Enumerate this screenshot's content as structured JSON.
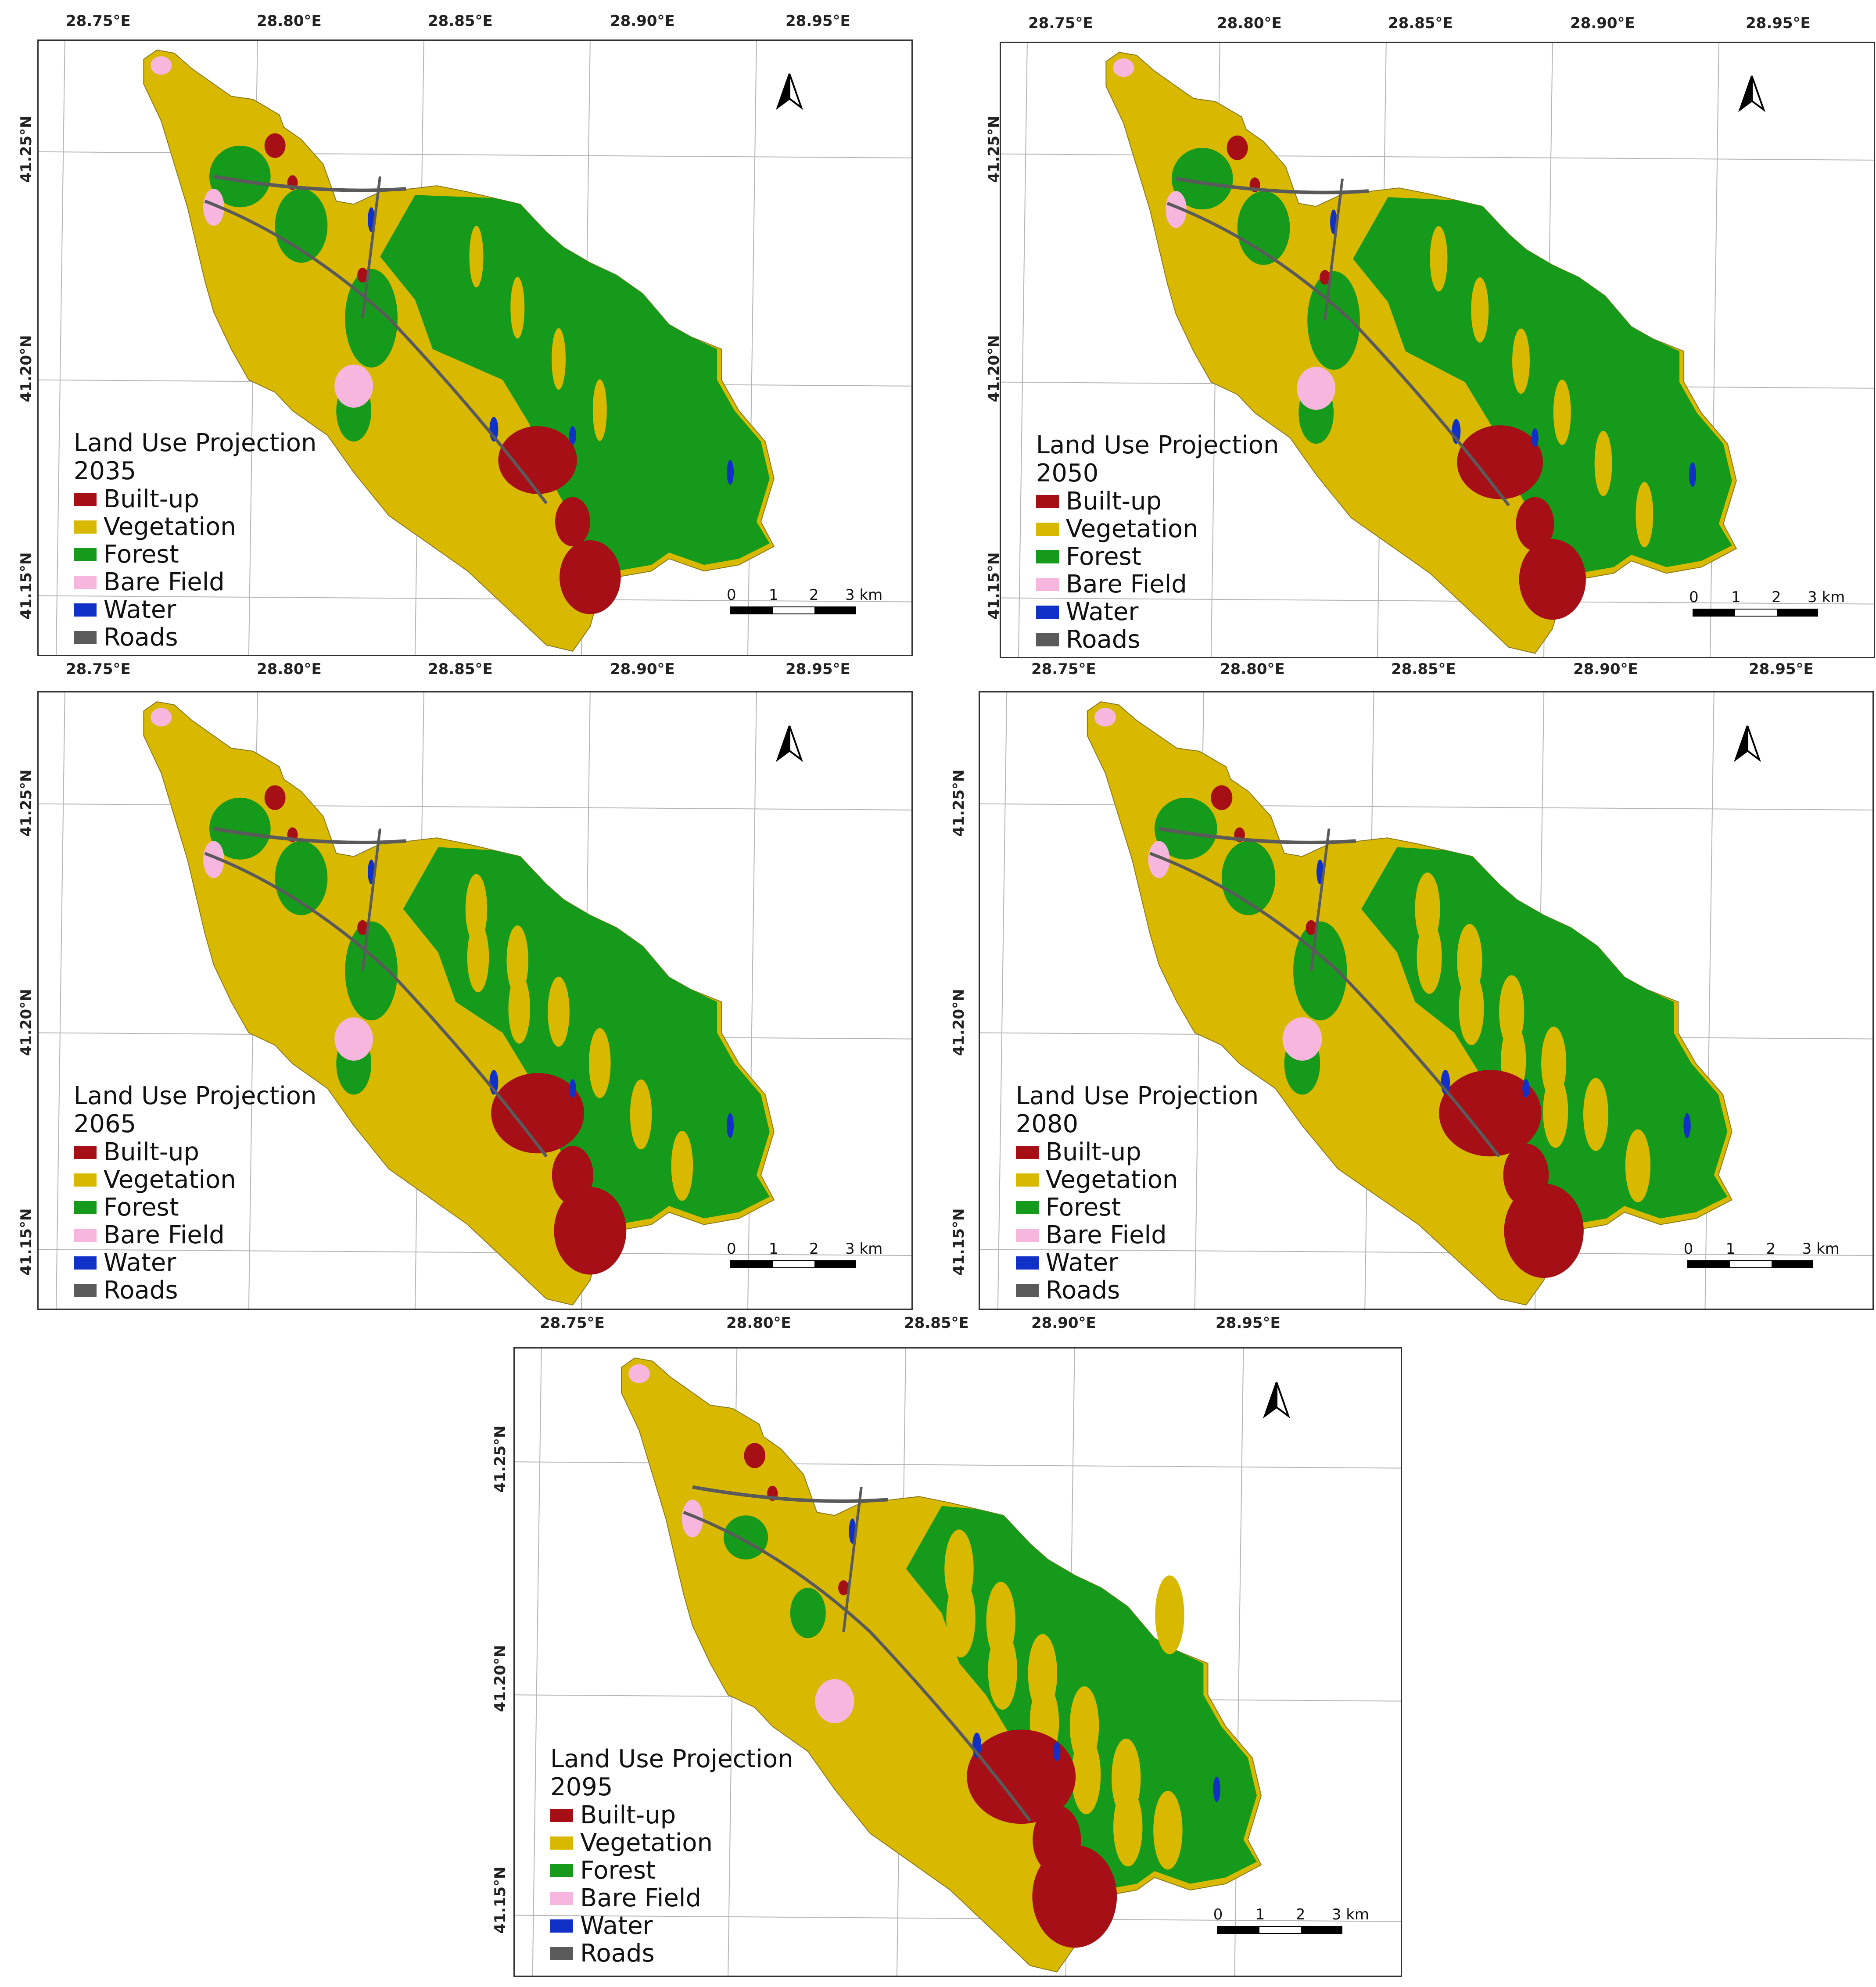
{
  "colors": {
    "built_up": "#A50F15",
    "vegetation": "#D9B800",
    "forest": "#159A1B",
    "bare_field": "#F7B6DE",
    "water": "#1030C8",
    "roads": "#5A5A5A",
    "grid": "#B5B5B5"
  },
  "icons": {
    "north_arrow": "north-arrow-icon"
  },
  "legend_items": [
    {
      "label": "Built-up",
      "color": "#A50F15"
    },
    {
      "label": "Vegetation",
      "color": "#D9B800"
    },
    {
      "label": "Forest",
      "color": "#159A1B"
    },
    {
      "label": "Bare Field",
      "color": "#F7B6DE"
    },
    {
      "label": "Water",
      "color": "#1030C8"
    },
    {
      "label": "Roads",
      "color": "#5A5A5A"
    }
  ],
  "scale_bar": {
    "labels": [
      "0",
      "1",
      "2",
      "3 km"
    ]
  },
  "panels": [
    {
      "legend_title": "Land Use Projection",
      "year": "2035",
      "top_lon_labels": [
        "28.75°E",
        "28.80°E",
        "28.85°E",
        "28.90°E",
        "28.95°E"
      ],
      "bottom_lon_labels": [
        "28.75°E",
        "28.80°E",
        "28.85°E",
        "28.90°E",
        "28.95°E"
      ],
      "lat_labels": [
        "41.25°N",
        "41.20°N",
        "41.15°N"
      ]
    },
    {
      "legend_title": "Land Use Projection",
      "year": "2050",
      "top_lon_labels": [
        "28.75°E",
        "28.80°E",
        "28.85°E",
        "28.90°E",
        "28.95°E"
      ],
      "bottom_lon_labels": [
        "28.75°E",
        "28.80°E",
        "28.85°E",
        "28.90°E",
        "28.95°E"
      ],
      "lat_labels": [
        "41.25°N",
        "41.20°N",
        "41.15°N"
      ]
    },
    {
      "legend_title": "Land Use Projection",
      "year": "2065",
      "top_lon_labels": [],
      "bottom_lon_labels": [
        "28.75°E",
        "28.80°E",
        "28.85°E"
      ],
      "lat_labels": [
        "41.25°N",
        "41.20°N",
        "41.15°N"
      ]
    },
    {
      "legend_title": "Land Use Projection",
      "year": "2080",
      "top_lon_labels": [],
      "bottom_lon_labels": [
        "28.90°E",
        "28.95°E"
      ],
      "lat_labels": [
        "41.25°N",
        "41.20°N",
        "41.15°N"
      ]
    },
    {
      "legend_title": "Land Use Projection",
      "year": "2095",
      "top_lon_labels": [],
      "bottom_lon_labels": [],
      "lat_labels": [
        "41.25°N",
        "41.20°N",
        "41.15°N"
      ]
    }
  ]
}
